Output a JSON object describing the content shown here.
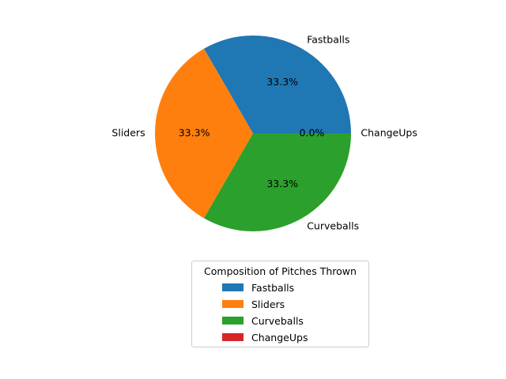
{
  "chart_data": {
    "type": "pie",
    "categories": [
      "Fastballs",
      "Sliders",
      "Curveballs",
      "ChangeUps"
    ],
    "values": [
      1,
      1,
      1,
      0
    ],
    "percent_labels": [
      "33.3%",
      "33.3%",
      "33.3%",
      "0.0%"
    ],
    "colors": [
      "#1f77b4",
      "#ff7f0e",
      "#2ca02c",
      "#d62728"
    ],
    "start_angle_deg": 0,
    "legend": {
      "title": "Composition of Pitches Thrown",
      "entries": [
        "Fastballs",
        "Sliders",
        "Curveballs",
        "ChangeUps"
      ],
      "placement": "lower-center"
    }
  }
}
